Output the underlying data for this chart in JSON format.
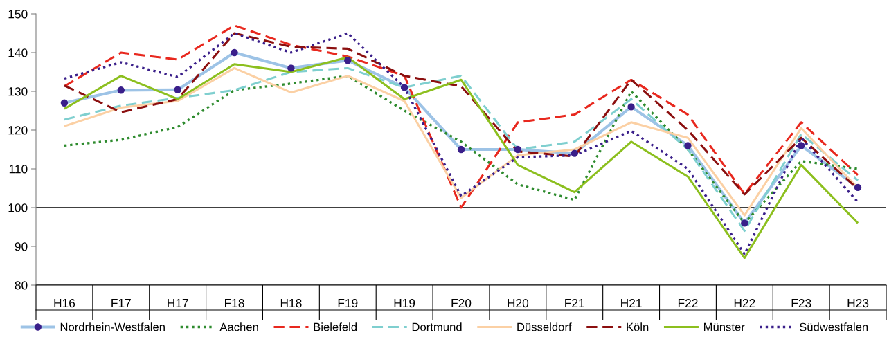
{
  "chart_data": {
    "type": "line",
    "categories": [
      "H16",
      "F17",
      "H17",
      "F18",
      "H18",
      "F19",
      "H19",
      "F20",
      "H20",
      "F21",
      "H21",
      "F22",
      "H22",
      "F23",
      "H23"
    ],
    "ylim": [
      80,
      150
    ],
    "yticks": [
      80,
      90,
      100,
      110,
      120,
      130,
      140,
      150
    ],
    "grid": false,
    "legend": "bottom",
    "ref_lines": [
      {
        "axis": "y",
        "value": 100,
        "color": "#000000",
        "line_style": "solid"
      }
    ],
    "series": [
      {
        "name": "Nordrhein-Westfalen",
        "color": "#9dc3e6",
        "marker": "circle",
        "line_style": "solid",
        "values": [
          127,
          130.3,
          130.4,
          140,
          136,
          138,
          131,
          115,
          115,
          114,
          126,
          116,
          96,
          116,
          105.2
        ]
      },
      {
        "name": "Aachen",
        "color": "#2e8b2e",
        "marker": "none",
        "line_style": "dotted",
        "values": [
          116,
          117.5,
          120.8,
          130.3,
          132,
          134,
          125,
          117,
          106,
          102,
          130,
          115,
          96,
          112,
          110
        ]
      },
      {
        "name": "Bielefeld",
        "color": "#e8281e",
        "marker": "none",
        "line_style": "dashed",
        "values": [
          131.3,
          140,
          138.2,
          147,
          142,
          139,
          134,
          100,
          122,
          124,
          133,
          124,
          103.5,
          122,
          108.4
        ]
      },
      {
        "name": "Dortmund",
        "color": "#7fcfcf",
        "marker": "none",
        "line_style": "dashed",
        "values": [
          122.7,
          126.3,
          128.3,
          130.3,
          135,
          136,
          131,
          134,
          115,
          117,
          128,
          115,
          94,
          119,
          107
        ]
      },
      {
        "name": "Düsseldorf",
        "color": "#fbd0a4",
        "marker": "none",
        "line_style": "solid",
        "values": [
          121,
          125.8,
          127.5,
          136,
          129.7,
          134,
          127.5,
          102.5,
          113.5,
          115,
          122,
          118,
          98,
          120.5,
          105
        ]
      },
      {
        "name": "Köln",
        "color": "#8b0f0f",
        "marker": "none",
        "line_style": "dashed",
        "values": [
          131.5,
          124.6,
          128,
          145,
          141.5,
          141,
          134,
          131.3,
          114.5,
          113.2,
          133,
          120,
          103.4,
          118,
          104.8
        ]
      },
      {
        "name": "Münster",
        "color": "#8cbf1e",
        "marker": "none",
        "line_style": "solid",
        "values": [
          125.5,
          134,
          128,
          137,
          135,
          138.8,
          128,
          133,
          111,
          104,
          117,
          108,
          87,
          111,
          96
        ]
      },
      {
        "name": "Südwestfalen",
        "color": "#3a1f8a",
        "marker": "none",
        "line_style": "dotted",
        "values": [
          133.3,
          137.5,
          133.7,
          145,
          140,
          145,
          131,
          103,
          113,
          113.5,
          119.8,
          110,
          88,
          118,
          101.4
        ]
      }
    ]
  }
}
